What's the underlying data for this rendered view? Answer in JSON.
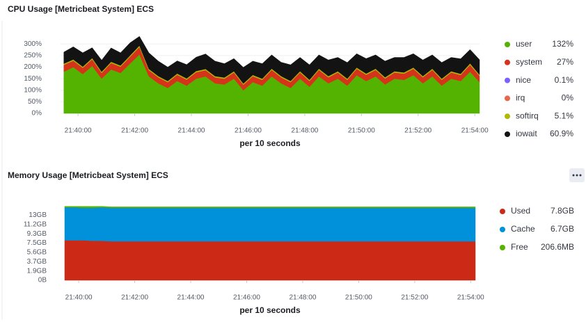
{
  "chart_data": [
    {
      "type": "stacked-area",
      "title": "CPU Usage [Metricbeat System] ECS",
      "xlabel": "per 10 seconds",
      "x": [
        "21:39:30",
        "21:39:50",
        "21:40:10",
        "21:40:30",
        "21:40:50",
        "21:41:10",
        "21:41:30",
        "21:41:50",
        "21:42:10",
        "21:42:30",
        "21:42:50",
        "21:43:10",
        "21:43:30",
        "21:43:50",
        "21:44:10",
        "21:44:30",
        "21:44:50",
        "21:45:10",
        "21:45:30",
        "21:45:50",
        "21:46:10",
        "21:46:30",
        "21:46:50",
        "21:47:10",
        "21:47:30",
        "21:47:50",
        "21:48:10",
        "21:48:30",
        "21:48:50",
        "21:49:10",
        "21:49:30",
        "21:49:50",
        "21:50:10",
        "21:50:30",
        "21:50:50",
        "21:51:10",
        "21:51:30",
        "21:51:50",
        "21:52:10",
        "21:52:30",
        "21:52:50",
        "21:53:10",
        "21:53:30",
        "21:53:50",
        "21:54:10"
      ],
      "xlim": [
        "21:39:23",
        "21:54:10"
      ],
      "xticks": [
        "21:40:00",
        "21:42:00",
        "21:44:00",
        "21:46:00",
        "21:48:00",
        "21:50:00",
        "21:52:00",
        "21:54:00"
      ],
      "ylim": [
        0,
        325
      ],
      "yticks": [
        {
          "value": 0,
          "label": "0%"
        },
        {
          "value": 50,
          "label": "50%"
        },
        {
          "value": 100,
          "label": "100%"
        },
        {
          "value": 150,
          "label": "150%"
        },
        {
          "value": 200,
          "label": "200%"
        },
        {
          "value": 250,
          "label": "250%"
        },
        {
          "value": 300,
          "label": "300%"
        }
      ],
      "grid": true,
      "series": [
        {
          "name": "user",
          "color": "#54b300",
          "value_label": "132%",
          "values": [
            180,
            200,
            170,
            205,
            150,
            190,
            175,
            215,
            255,
            160,
            130,
            110,
            140,
            120,
            150,
            160,
            130,
            125,
            150,
            100,
            135,
            120,
            160,
            130,
            110,
            150,
            115,
            160,
            130,
            150,
            120,
            165,
            140,
            160,
            125,
            150,
            145,
            165,
            130,
            160,
            120,
            150,
            140,
            180,
            135
          ]
        },
        {
          "name": "system",
          "color": "#d6331b",
          "value_label": "27%",
          "values": [
            30,
            28,
            27,
            29,
            25,
            28,
            27,
            30,
            32,
            27,
            26,
            25,
            27,
            26,
            28,
            27,
            26,
            25,
            27,
            24,
            26,
            25,
            28,
            26,
            25,
            27,
            25,
            28,
            26,
            27,
            25,
            28,
            27,
            28,
            26,
            27,
            27,
            28,
            26,
            28,
            25,
            27,
            26,
            30,
            27
          ]
        },
        {
          "name": "nice",
          "color": "#7b61ff",
          "value_label": "0.1%",
          "values": [
            0.1,
            0.1,
            0.1,
            0.1,
            0.1,
            0.1,
            0.1,
            0.1,
            0.1,
            0.1,
            0.1,
            0.1,
            0.1,
            0.1,
            0.1,
            0.1,
            0.1,
            0.1,
            0.1,
            0.1,
            0.1,
            0.1,
            0.1,
            0.1,
            0.1,
            0.1,
            0.1,
            0.1,
            0.1,
            0.1,
            0.1,
            0.1,
            0.1,
            0.1,
            0.1,
            0.1,
            0.1,
            0.1,
            0.1,
            0.1,
            0.1,
            0.1,
            0.1,
            0.1,
            0.1
          ]
        },
        {
          "name": "irq",
          "color": "#e7664c",
          "value_label": "0%",
          "values": [
            0,
            0,
            0,
            0,
            0,
            0,
            0,
            0,
            0,
            0,
            0,
            0,
            0,
            0,
            0,
            0,
            0,
            0,
            0,
            0,
            0,
            0,
            0,
            0,
            0,
            0,
            0,
            0,
            0,
            0,
            0,
            0,
            0,
            0,
            0,
            0,
            0,
            0,
            0,
            0,
            0,
            0,
            0,
            0,
            0
          ]
        },
        {
          "name": "softirq",
          "color": "#b0b800",
          "value_label": "5.1%",
          "values": [
            5,
            5,
            5,
            5,
            5,
            5,
            5,
            5,
            6,
            5,
            5,
            5,
            5,
            5,
            5,
            5,
            5,
            5,
            5,
            5,
            5,
            5,
            5,
            5,
            5,
            5,
            5,
            5,
            5,
            5,
            5,
            5,
            5,
            5,
            5,
            5,
            5,
            5,
            5,
            5,
            5,
            5,
            5,
            6,
            5
          ]
        },
        {
          "name": "iowait",
          "color": "#131313",
          "value_label": "60.9%",
          "values": [
            50,
            55,
            60,
            45,
            50,
            60,
            55,
            55,
            40,
            70,
            65,
            60,
            55,
            60,
            60,
            65,
            65,
            60,
            55,
            70,
            60,
            65,
            60,
            60,
            70,
            60,
            65,
            60,
            70,
            60,
            70,
            60,
            65,
            60,
            70,
            60,
            65,
            60,
            70,
            60,
            70,
            60,
            65,
            60,
            65
          ]
        }
      ]
    },
    {
      "type": "stacked-area",
      "title": "Memory Usage [Metricbeat System] ECS",
      "xlabel": "per 10 seconds",
      "x": [
        "21:39:30",
        "21:39:50",
        "21:40:10",
        "21:40:30",
        "21:40:50",
        "21:41:10",
        "21:41:30",
        "21:41:50",
        "21:42:10",
        "21:42:30",
        "21:42:50",
        "21:43:10",
        "21:43:30",
        "21:43:50",
        "21:44:10",
        "21:44:30",
        "21:44:50",
        "21:45:10",
        "21:45:30",
        "21:45:50",
        "21:46:10",
        "21:46:30",
        "21:46:50",
        "21:47:10",
        "21:47:30",
        "21:47:50",
        "21:48:10",
        "21:48:30",
        "21:48:50",
        "21:49:10",
        "21:49:30",
        "21:49:50",
        "21:50:10",
        "21:50:30",
        "21:50:50",
        "21:51:10",
        "21:51:30",
        "21:51:50",
        "21:52:10",
        "21:52:30",
        "21:52:50",
        "21:53:10",
        "21:53:30",
        "21:53:50",
        "21:54:10"
      ],
      "xlim": [
        "21:39:30",
        "21:54:10"
      ],
      "xticks": [
        "21:40:00",
        "21:42:00",
        "21:44:00",
        "21:46:00",
        "21:48:00",
        "21:50:00",
        "21:52:00",
        "21:54:00"
      ],
      "ylim": [
        0,
        14.9
      ],
      "yticks": [
        {
          "value": 0,
          "label": "0B"
        },
        {
          "value": 1.86,
          "label": "1.9GB"
        },
        {
          "value": 3.73,
          "label": "3.7GB"
        },
        {
          "value": 5.59,
          "label": "5.6GB"
        },
        {
          "value": 7.45,
          "label": "7.5GB"
        },
        {
          "value": 9.31,
          "label": "9.3GB"
        },
        {
          "value": 11.18,
          "label": "11.2GB"
        },
        {
          "value": 13.04,
          "label": "13GB"
        }
      ],
      "grid": false,
      "series": [
        {
          "name": "Used",
          "color": "#cc2a17",
          "value_label": "7.8GB",
          "values": [
            8.0,
            8.0,
            8.0,
            7.9,
            7.9,
            7.8,
            7.8,
            7.8,
            7.8,
            7.8,
            7.8,
            7.8,
            7.8,
            7.8,
            7.8,
            7.8,
            7.8,
            7.8,
            7.8,
            7.8,
            7.8,
            7.8,
            7.8,
            7.8,
            7.8,
            7.8,
            7.8,
            7.8,
            7.8,
            7.8,
            7.8,
            7.8,
            7.8,
            7.8,
            7.8,
            7.8,
            7.8,
            7.8,
            7.8,
            7.8,
            7.8,
            7.8,
            7.8,
            7.8,
            7.8
          ]
        },
        {
          "name": "Cache",
          "color": "#0091da",
          "value_label": "6.7GB",
          "values": [
            6.6,
            6.6,
            6.5,
            6.6,
            6.7,
            6.7,
            6.7,
            6.7,
            6.7,
            6.7,
            6.7,
            6.7,
            6.7,
            6.7,
            6.7,
            6.7,
            6.7,
            6.7,
            6.7,
            6.7,
            6.7,
            6.7,
            6.7,
            6.7,
            6.7,
            6.7,
            6.7,
            6.7,
            6.7,
            6.7,
            6.7,
            6.7,
            6.7,
            6.7,
            6.7,
            6.7,
            6.7,
            6.7,
            6.7,
            6.7,
            6.7,
            6.7,
            6.7,
            6.7,
            6.7
          ]
        },
        {
          "name": "Free",
          "color": "#54b300",
          "value_label": "206.6MB",
          "values": [
            0.2,
            0.2,
            0.3,
            0.3,
            0.2,
            0.2,
            0.2,
            0.2,
            0.2,
            0.2,
            0.2,
            0.2,
            0.2,
            0.2,
            0.2,
            0.2,
            0.2,
            0.2,
            0.2,
            0.2,
            0.2,
            0.2,
            0.2,
            0.2,
            0.2,
            0.2,
            0.2,
            0.2,
            0.2,
            0.2,
            0.2,
            0.2,
            0.2,
            0.2,
            0.2,
            0.2,
            0.2,
            0.2,
            0.2,
            0.2,
            0.2,
            0.2,
            0.2,
            0.2,
            0.2
          ]
        }
      ]
    }
  ]
}
